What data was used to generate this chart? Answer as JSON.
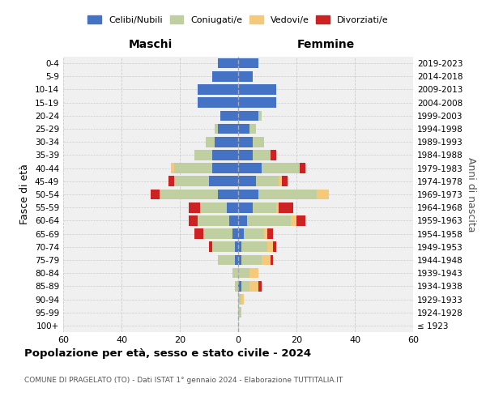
{
  "age_groups": [
    "100+",
    "95-99",
    "90-94",
    "85-89",
    "80-84",
    "75-79",
    "70-74",
    "65-69",
    "60-64",
    "55-59",
    "50-54",
    "45-49",
    "40-44",
    "35-39",
    "30-34",
    "25-29",
    "20-24",
    "15-19",
    "10-14",
    "5-9",
    "0-4"
  ],
  "birth_years": [
    "≤ 1923",
    "1924-1928",
    "1929-1933",
    "1934-1938",
    "1939-1943",
    "1944-1948",
    "1949-1953",
    "1954-1958",
    "1959-1963",
    "1964-1968",
    "1969-1973",
    "1974-1978",
    "1979-1983",
    "1984-1988",
    "1989-1993",
    "1994-1998",
    "1999-2003",
    "2004-2008",
    "2009-2013",
    "2014-2018",
    "2019-2023"
  ],
  "colors": {
    "celibi": "#4472C4",
    "coniugati": "#BFCF9F",
    "vedovi": "#F5C97A",
    "divorziati": "#CC2222"
  },
  "males": {
    "celibi": [
      0,
      0,
      0,
      0,
      0,
      1,
      1,
      2,
      3,
      4,
      7,
      10,
      9,
      9,
      8,
      7,
      6,
      14,
      14,
      9,
      7
    ],
    "coniugati": [
      0,
      0,
      0,
      1,
      2,
      6,
      8,
      10,
      11,
      9,
      20,
      12,
      13,
      6,
      3,
      1,
      0,
      0,
      0,
      0,
      0
    ],
    "vedovi": [
      0,
      0,
      0,
      0,
      0,
      0,
      0,
      0,
      0,
      0,
      0,
      0,
      1,
      0,
      0,
      0,
      0,
      0,
      0,
      0,
      0
    ],
    "divorziati": [
      0,
      0,
      0,
      0,
      0,
      0,
      1,
      3,
      3,
      4,
      3,
      2,
      0,
      0,
      0,
      0,
      0,
      0,
      0,
      0,
      0
    ]
  },
  "females": {
    "celibi": [
      0,
      0,
      0,
      1,
      0,
      1,
      1,
      2,
      3,
      5,
      7,
      6,
      8,
      5,
      5,
      4,
      7,
      13,
      13,
      5,
      7
    ],
    "coniugati": [
      0,
      1,
      1,
      3,
      4,
      7,
      9,
      7,
      15,
      8,
      20,
      8,
      13,
      6,
      4,
      2,
      1,
      0,
      0,
      0,
      0
    ],
    "vedovi": [
      0,
      0,
      1,
      3,
      3,
      3,
      2,
      1,
      2,
      1,
      4,
      1,
      0,
      0,
      0,
      0,
      0,
      0,
      0,
      0,
      0
    ],
    "divorziati": [
      0,
      0,
      0,
      1,
      0,
      1,
      1,
      2,
      3,
      5,
      0,
      2,
      2,
      2,
      0,
      0,
      0,
      0,
      0,
      0,
      0
    ]
  },
  "xlim": 60,
  "title": "Popolazione per età, sesso e stato civile - 2024",
  "subtitle": "COMUNE DI PRAGELATO (TO) - Dati ISTAT 1° gennaio 2024 - Elaborazione TUTTITALIA.IT",
  "ylabel_left": "Fasce di età",
  "ylabel_right": "Anni di nascita",
  "xlabel_left": "Maschi",
  "xlabel_right": "Femmine",
  "legend_labels": [
    "Celibi/Nubili",
    "Coniugati/e",
    "Vedovi/e",
    "Divorziati/e"
  ],
  "bg_color": "#F0F0F0",
  "grid_color": "#CCCCCC"
}
